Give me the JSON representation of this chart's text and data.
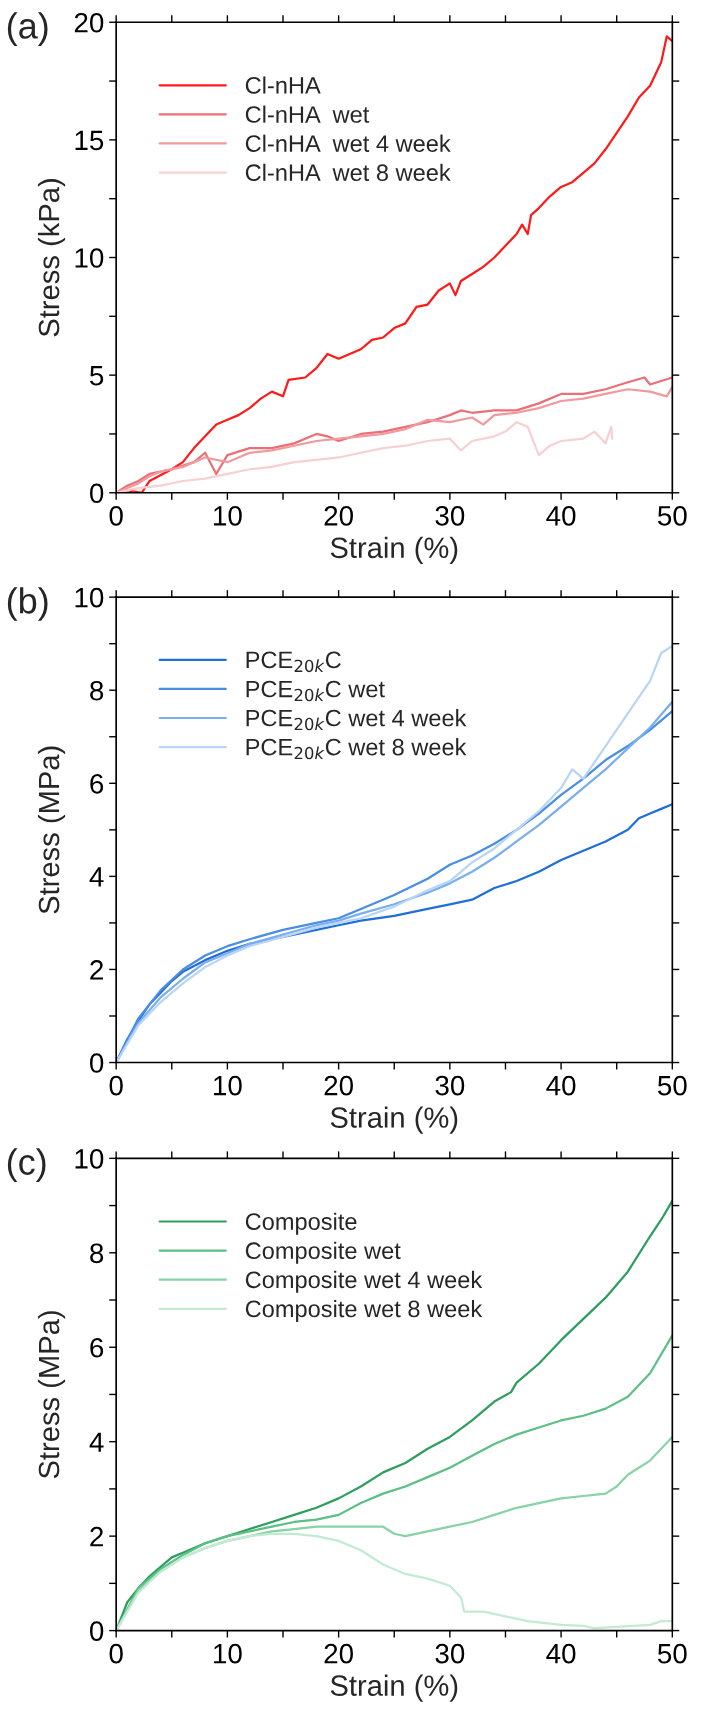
{
  "chart_data": [
    {
      "type": "line",
      "annotations": [
        "(a)"
      ],
      "xlabel": "Strain (%)",
      "ylabel": "Stress (kPa)",
      "xlim": [
        0,
        50
      ],
      "ylim": [
        0,
        20
      ],
      "xticks": [
        0,
        {
          "value": 5,
          "label": null
        },
        10,
        {
          "value": 15,
          "label": null
        },
        20,
        {
          "value": 25,
          "label": null
        },
        30,
        {
          "value": 35,
          "label": null
        },
        40,
        {
          "value": 45,
          "label": null
        },
        50
      ],
      "yticks": [
        0,
        {
          "value": 2.5,
          "label": null
        },
        5,
        {
          "value": 7.5,
          "label": null
        },
        10,
        {
          "value": 12.5,
          "label": null
        },
        15,
        {
          "value": 17.5,
          "label": null
        },
        20
      ],
      "grid": false,
      "legend": "top left",
      "marker": "none",
      "line_style": "solid",
      "series": [
        {
          "name": "Cl-nHA",
          "color": "#ff1a1a",
          "x": [
            0,
            1,
            2.3,
            3,
            5,
            6,
            7,
            8,
            9,
            10,
            11,
            12,
            13,
            14,
            15,
            15.5,
            17,
            18,
            19,
            20,
            21,
            22,
            23,
            24,
            25,
            26,
            27,
            28,
            29,
            30,
            30.5,
            31,
            32,
            33,
            34,
            35,
            36,
            36.5,
            37,
            37.3,
            38,
            39,
            40,
            41,
            42,
            43,
            44,
            45,
            46,
            47,
            48,
            49,
            49.5,
            50
          ],
          "values": [
            0,
            0.1,
            0,
            0.5,
            1.0,
            1.3,
            1.9,
            2.4,
            2.9,
            3.1,
            3.3,
            3.6,
            4.0,
            4.3,
            4.1,
            4.8,
            4.9,
            5.3,
            5.9,
            5.7,
            5.9,
            6.1,
            6.5,
            6.6,
            7.0,
            7.2,
            7.9,
            8.0,
            8.6,
            8.9,
            8.4,
            9.0,
            9.3,
            9.6,
            10.0,
            10.5,
            11.0,
            11.4,
            11.0,
            11.8,
            12.1,
            12.6,
            13.0,
            13.2,
            13.6,
            14.0,
            14.6,
            15.3,
            16.0,
            16.8,
            17.3,
            18.3,
            19.4,
            19.2
          ]
        },
        {
          "name": "Cl-nHA  wet",
          "color": "#eb6f77",
          "x": [
            0,
            1,
            2,
            3,
            5,
            7,
            8,
            9,
            10,
            12,
            14,
            16,
            17,
            18,
            19,
            20,
            22,
            24,
            26,
            28,
            30,
            31,
            32,
            34,
            36,
            38,
            40,
            42,
            44,
            46,
            47.5,
            48,
            50
          ],
          "values": [
            0,
            0.3,
            0.5,
            0.8,
            1.0,
            1.3,
            1.7,
            0.8,
            1.6,
            1.9,
            1.9,
            2.1,
            2.3,
            2.5,
            2.4,
            2.2,
            2.5,
            2.6,
            2.8,
            3.0,
            3.3,
            3.5,
            3.4,
            3.5,
            3.5,
            3.8,
            4.2,
            4.2,
            4.4,
            4.7,
            4.9,
            4.6,
            4.9
          ]
        },
        {
          "name": "Cl-nHA  wet 4 week",
          "color": "#f09a9e",
          "x": [
            0,
            1,
            2,
            3,
            4,
            6,
            8,
            10,
            12,
            14,
            16,
            18,
            20,
            22,
            24,
            26,
            28,
            30,
            32,
            33,
            34,
            36,
            38,
            40,
            42,
            44,
            46,
            48,
            49.5,
            50
          ],
          "values": [
            0,
            0.2,
            0.4,
            0.7,
            0.9,
            1.1,
            1.5,
            1.3,
            1.7,
            1.8,
            2.0,
            2.2,
            2.3,
            2.4,
            2.5,
            2.7,
            3.1,
            3.0,
            3.2,
            2.9,
            3.3,
            3.4,
            3.6,
            3.9,
            4.0,
            4.2,
            4.4,
            4.3,
            4.1,
            4.5
          ]
        },
        {
          "name": "Cl-nHA  wet 8 week",
          "color": "#f7d0d2",
          "x": [
            0,
            1,
            2,
            4,
            6,
            8,
            10,
            12,
            14,
            16,
            18,
            20,
            22,
            24,
            26,
            28,
            30,
            31,
            32,
            34,
            35,
            36,
            37,
            38,
            39,
            40,
            42,
            43,
            44,
            44.5,
            44.6
          ],
          "values": [
            0,
            0.1,
            0.2,
            0.3,
            0.5,
            0.6,
            0.8,
            1.0,
            1.1,
            1.3,
            1.4,
            1.5,
            1.7,
            1.9,
            2.0,
            2.2,
            2.3,
            1.8,
            2.2,
            2.4,
            2.6,
            3.0,
            2.8,
            1.6,
            2.0,
            2.2,
            2.3,
            2.6,
            2.1,
            2.8,
            2.3
          ]
        }
      ]
    },
    {
      "type": "line",
      "annotations": [
        "(b)"
      ],
      "xlabel": "Strain (%)",
      "ylabel": "Stress (MPa)",
      "xlim": [
        0,
        50
      ],
      "ylim": [
        0,
        10
      ],
      "xticks": [
        0,
        {
          "value": 5,
          "label": null
        },
        10,
        {
          "value": 15,
          "label": null
        },
        20,
        {
          "value": 25,
          "label": null
        },
        30,
        {
          "value": 35,
          "label": null
        },
        40,
        {
          "value": 45,
          "label": null
        },
        50
      ],
      "yticks": [
        0,
        {
          "value": 1,
          "label": null
        },
        2,
        {
          "value": 3,
          "label": null
        },
        4,
        {
          "value": 5,
          "label": null
        },
        6,
        {
          "value": 7,
          "label": null
        },
        8,
        {
          "value": 9,
          "label": null
        },
        10
      ],
      "grid": false,
      "legend": "top left",
      "marker": "none",
      "line_style": "solid",
      "series": [
        {
          "name": "PCE$_{20k}$C",
          "color": "#1f6fd8",
          "x": [
            0,
            1,
            2,
            3,
            4,
            5,
            6,
            8,
            10,
            12,
            15,
            18,
            20,
            22,
            25,
            28,
            30,
            32,
            34,
            36,
            38,
            40,
            42,
            44,
            46,
            47,
            48,
            49,
            50
          ],
          "values": [
            0,
            0.5,
            0.9,
            1.25,
            1.5,
            1.75,
            1.95,
            2.2,
            2.4,
            2.55,
            2.7,
            2.85,
            2.95,
            3.05,
            3.15,
            3.3,
            3.4,
            3.5,
            3.75,
            3.9,
            4.1,
            4.35,
            4.55,
            4.75,
            5.0,
            5.25,
            5.35,
            5.45,
            5.55
          ]
        },
        {
          "name": "PCE$_{20k}$C wet",
          "color": "#4a8de4",
          "x": [
            0,
            2,
            4,
            6,
            8,
            10,
            12,
            15,
            18,
            20,
            22,
            25,
            28,
            30,
            32,
            34,
            36,
            38,
            40,
            42,
            44,
            46,
            48,
            50
          ],
          "values": [
            0,
            0.95,
            1.55,
            2.0,
            2.3,
            2.5,
            2.65,
            2.85,
            3.0,
            3.1,
            3.3,
            3.6,
            3.95,
            4.25,
            4.45,
            4.7,
            5.0,
            5.35,
            5.75,
            6.1,
            6.5,
            6.8,
            7.15,
            7.55
          ]
        },
        {
          "name": "PCE$_{20k}$C wet 4 week",
          "color": "#7aaeee",
          "x": [
            0,
            2,
            4,
            6,
            8,
            10,
            12,
            15,
            18,
            20,
            22,
            25,
            28,
            30,
            32,
            34,
            36,
            38,
            40,
            42,
            44,
            46,
            48,
            50
          ],
          "values": [
            0,
            0.85,
            1.4,
            1.8,
            2.15,
            2.35,
            2.55,
            2.75,
            2.95,
            3.05,
            3.2,
            3.4,
            3.65,
            3.85,
            4.1,
            4.4,
            4.75,
            5.1,
            5.5,
            5.9,
            6.3,
            6.75,
            7.2,
            7.75
          ]
        },
        {
          "name": "PCE$_{20k}$C wet 8 week",
          "color": "#b9d5f6",
          "x": [
            0,
            2,
            4,
            6,
            8,
            10,
            12,
            15,
            18,
            20,
            22,
            25,
            28,
            30,
            32,
            34,
            36,
            38,
            40,
            41,
            42,
            44,
            46,
            48,
            49,
            50
          ],
          "values": [
            0,
            0.8,
            1.3,
            1.7,
            2.05,
            2.3,
            2.5,
            2.7,
            2.9,
            3.0,
            3.1,
            3.35,
            3.7,
            3.9,
            4.3,
            4.6,
            5.0,
            5.4,
            5.9,
            6.3,
            6.1,
            6.8,
            7.5,
            8.2,
            8.8,
            8.95
          ]
        }
      ]
    },
    {
      "type": "line",
      "annotations": [
        "(c)"
      ],
      "xlabel": "Strain (%)",
      "ylabel": "Stress (MPa)",
      "xlim": [
        0,
        50
      ],
      "ylim": [
        0,
        10
      ],
      "xticks": [
        0,
        {
          "value": 5,
          "label": null
        },
        10,
        {
          "value": 15,
          "label": null
        },
        20,
        {
          "value": 25,
          "label": null
        },
        30,
        {
          "value": 35,
          "label": null
        },
        40,
        {
          "value": 45,
          "label": null
        },
        50
      ],
      "yticks": [
        0,
        {
          "value": 1,
          "label": null
        },
        2,
        {
          "value": 3,
          "label": null
        },
        4,
        {
          "value": 5,
          "label": null
        },
        6,
        {
          "value": 7,
          "label": null
        },
        8,
        {
          "value": 9,
          "label": null
        },
        10
      ],
      "grid": false,
      "legend": "top left",
      "marker": "none",
      "line_style": "solid",
      "series": [
        {
          "name": "Composite",
          "color": "#2e9e5e",
          "x": [
            0,
            1,
            2,
            3,
            4,
            5,
            6,
            8,
            10,
            12,
            14,
            16,
            18,
            20,
            22,
            24,
            26,
            28,
            30,
            32,
            34,
            35.5,
            36,
            38,
            40,
            42,
            44,
            46,
            48,
            49,
            50
          ],
          "values": [
            0,
            0.6,
            0.9,
            1.15,
            1.35,
            1.55,
            1.65,
            1.85,
            2.0,
            2.15,
            2.3,
            2.45,
            2.6,
            2.8,
            3.05,
            3.35,
            3.55,
            3.85,
            4.1,
            4.45,
            4.85,
            5.05,
            5.25,
            5.65,
            6.15,
            6.6,
            7.05,
            7.6,
            8.35,
            8.7,
            9.1
          ]
        },
        {
          "name": "Composite wet",
          "color": "#5cbf85",
          "x": [
            0,
            2,
            4,
            6,
            8,
            10,
            12,
            14,
            16,
            18,
            20,
            22,
            24,
            26,
            28,
            30,
            32,
            34,
            36,
            38,
            40,
            42,
            44,
            46,
            48,
            50
          ],
          "values": [
            0,
            0.9,
            1.3,
            1.6,
            1.85,
            2.0,
            2.1,
            2.2,
            2.3,
            2.35,
            2.45,
            2.7,
            2.9,
            3.05,
            3.25,
            3.45,
            3.7,
            3.95,
            4.15,
            4.3,
            4.45,
            4.55,
            4.7,
            4.95,
            5.45,
            6.25
          ]
        },
        {
          "name": "Composite wet 4 week",
          "color": "#86d3a5",
          "x": [
            0,
            2,
            4,
            6,
            8,
            10,
            12,
            14,
            16,
            18,
            20,
            22,
            24,
            25,
            26,
            28,
            30,
            32,
            34,
            36,
            38,
            40,
            42,
            44,
            45,
            46,
            48,
            50
          ],
          "values": [
            0,
            0.85,
            1.25,
            1.55,
            1.75,
            1.9,
            2.0,
            2.1,
            2.15,
            2.2,
            2.2,
            2.2,
            2.2,
            2.05,
            2.0,
            2.1,
            2.2,
            2.3,
            2.45,
            2.6,
            2.7,
            2.8,
            2.85,
            2.9,
            3.05,
            3.3,
            3.6,
            4.1
          ]
        },
        {
          "name": "Composite wet 8 week",
          "color": "#c3ead3",
          "x": [
            0,
            2,
            4,
            6,
            8,
            10,
            12,
            14,
            16,
            18,
            20,
            22,
            24,
            26,
            28,
            30,
            31,
            31.3,
            33,
            35,
            37,
            40,
            42,
            43,
            45,
            48,
            49,
            50
          ],
          "values": [
            0,
            0.8,
            1.25,
            1.55,
            1.75,
            1.9,
            2.0,
            2.05,
            2.05,
            2.0,
            1.9,
            1.7,
            1.4,
            1.2,
            1.1,
            0.95,
            0.7,
            0.4,
            0.4,
            0.3,
            0.2,
            0.12,
            0.1,
            0.05,
            0.08,
            0.12,
            0.2,
            0.2
          ]
        }
      ]
    }
  ]
}
